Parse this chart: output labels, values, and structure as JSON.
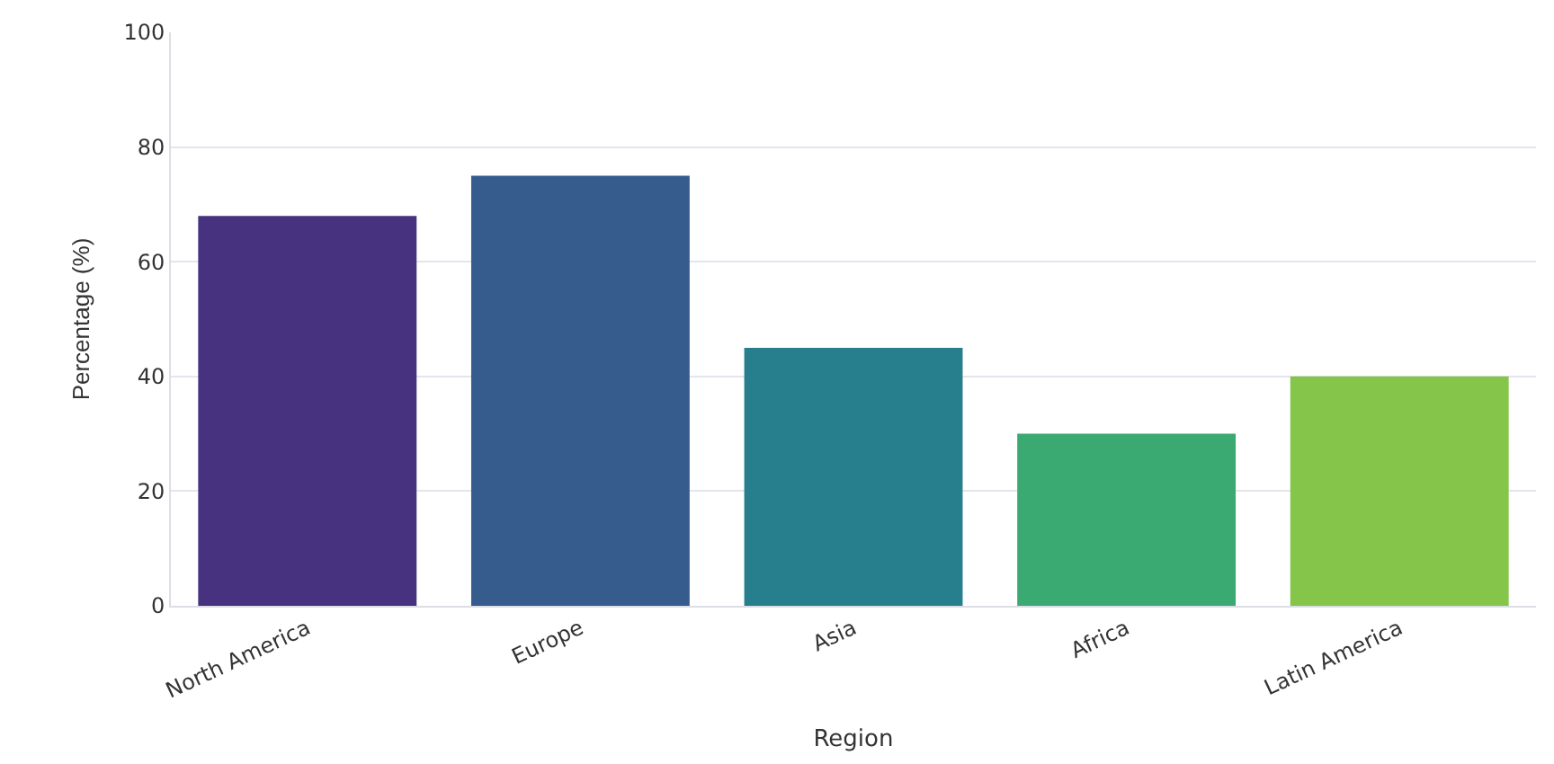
{
  "chart_data": {
    "type": "bar",
    "xlabel": "Region",
    "ylabel": "Percentage (%)",
    "categories": [
      "North America",
      "Europe",
      "Asia",
      "Africa",
      "Latin America"
    ],
    "values": [
      68,
      75,
      45,
      30,
      40
    ],
    "colors": [
      "#46327e",
      "#365c8d",
      "#277f8e",
      "#3aaa72",
      "#84c54a"
    ],
    "ylim": [
      0,
      100
    ],
    "yticks": [
      0,
      20,
      40,
      60,
      80,
      100
    ],
    "grid": "y"
  }
}
